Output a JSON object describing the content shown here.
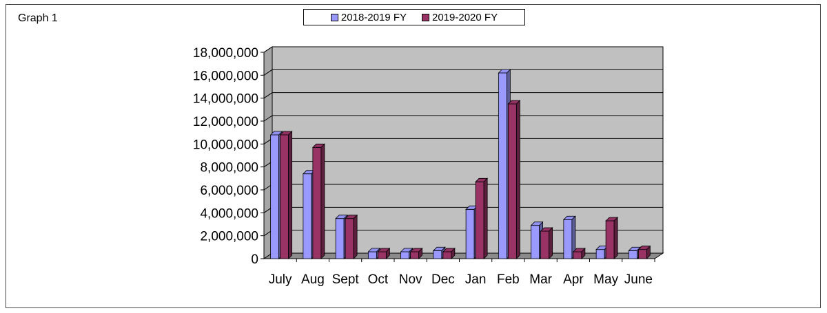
{
  "chart_label": "Graph 1",
  "colors": {
    "series1": "#9999ff",
    "series2": "#993366",
    "wall": "#c0c0c0",
    "grid": "#000000"
  },
  "chart_data": {
    "type": "bar",
    "categories": [
      "July",
      "Aug",
      "Sept",
      "Oct",
      "Nov",
      "Dec",
      "Jan",
      "Feb",
      "Mar",
      "Apr",
      "May",
      "June"
    ],
    "series": [
      {
        "name": "2018-2019 FY",
        "values": [
          10800000,
          7400000,
          3500000,
          600000,
          600000,
          700000,
          4300000,
          16200000,
          2900000,
          3400000,
          800000,
          700000
        ]
      },
      {
        "name": "2019-2020 FY",
        "values": [
          10800000,
          9700000,
          3500000,
          600000,
          600000,
          600000,
          6700000,
          13500000,
          2400000,
          600000,
          3300000,
          800000
        ]
      }
    ],
    "title": "",
    "xlabel": "",
    "ylabel": "",
    "ylim": [
      0,
      18000000
    ],
    "yticks": [
      0,
      2000000,
      4000000,
      6000000,
      8000000,
      10000000,
      12000000,
      14000000,
      16000000,
      18000000
    ],
    "ytick_labels": [
      "0",
      "2,000,000",
      "4,000,000",
      "6,000,000",
      "8,000,000",
      "10,000,000",
      "12,000,000",
      "14,000,000",
      "16,000,000",
      "18,000,000"
    ],
    "grid": true,
    "legend": "top-center"
  }
}
